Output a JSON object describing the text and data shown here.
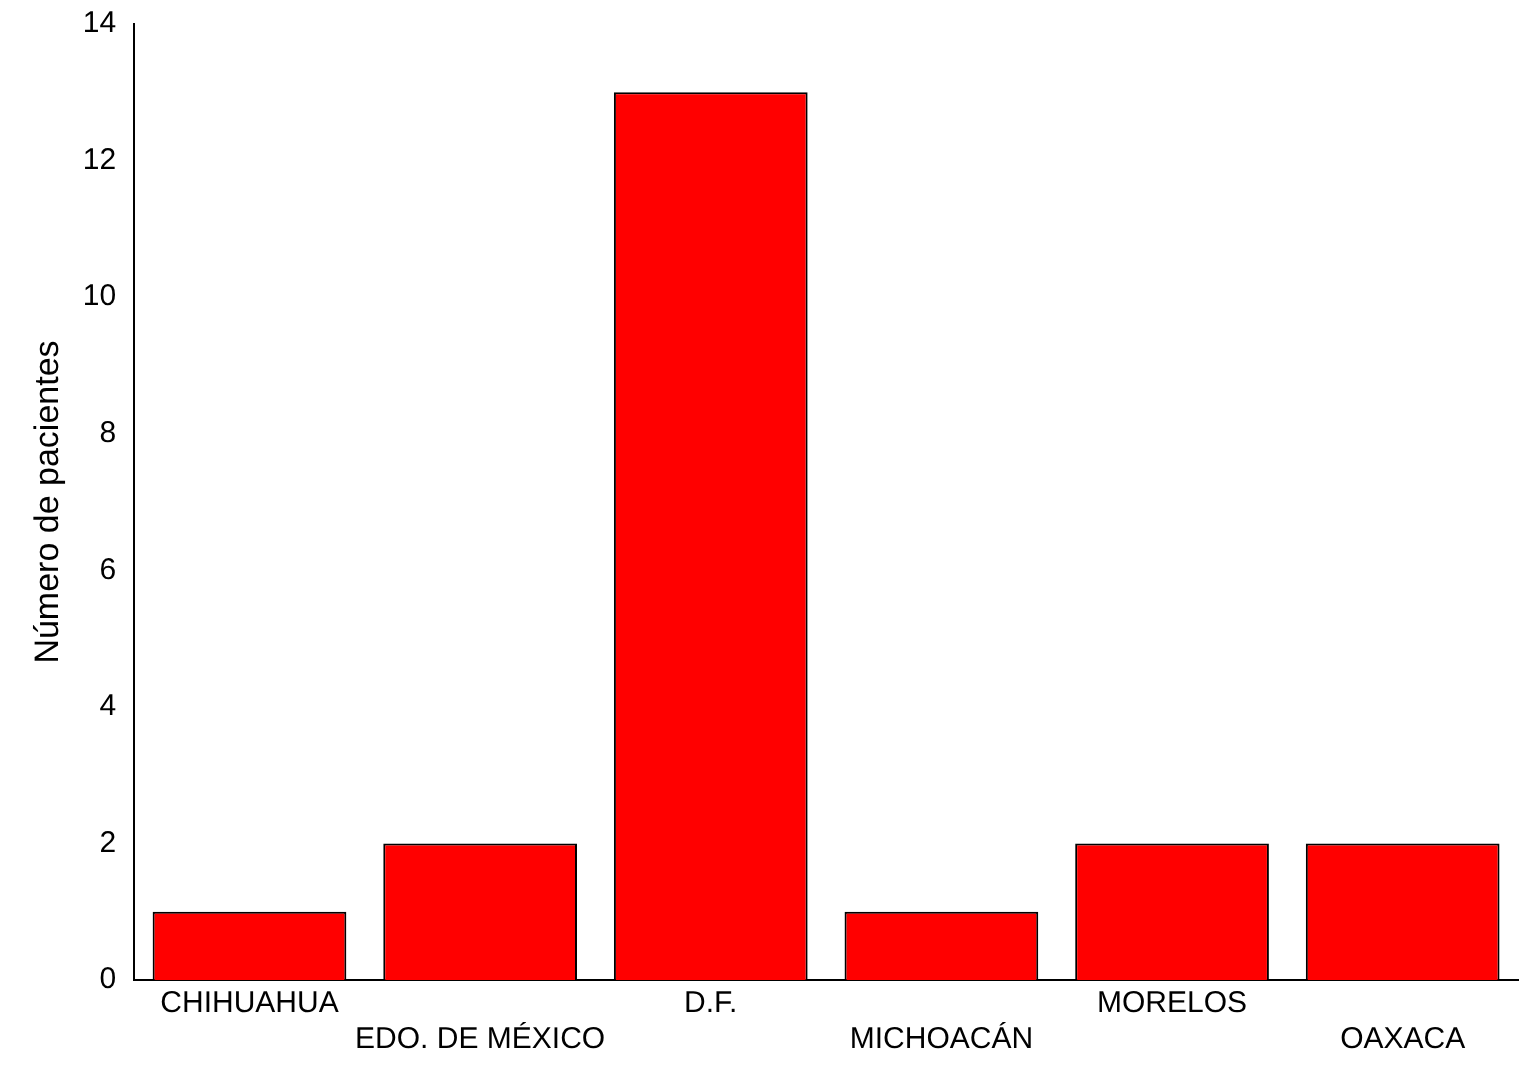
{
  "chart_data": {
    "type": "bar",
    "ylabel": "Número de pacientes",
    "categories": [
      "CHIHUAHUA",
      "EDO. DE MÉXICO",
      "D.F.",
      "MICHOACÁN",
      "MORELOS",
      "OAXACA"
    ],
    "values": [
      1,
      2,
      13,
      1,
      2,
      2
    ],
    "color": "#ff0000",
    "ylim": [
      0,
      14
    ],
    "yticks": [
      0,
      2,
      4,
      6,
      8,
      10,
      12,
      14
    ],
    "grid": false,
    "legend": false
  }
}
